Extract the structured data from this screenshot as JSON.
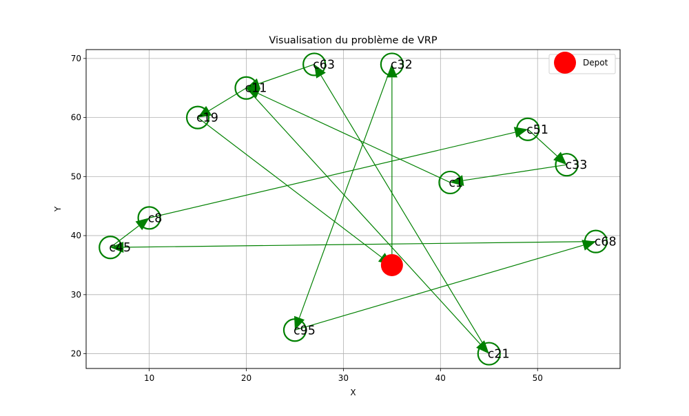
{
  "chart_data": {
    "type": "scatter",
    "title": "Visualisation du problème de VRP",
    "xlabel": "X",
    "ylabel": "Y",
    "xlim": [
      3.5,
      58.5
    ],
    "ylim": [
      17.5,
      71.5
    ],
    "xticks": [
      10,
      20,
      30,
      40,
      50
    ],
    "yticks": [
      20,
      30,
      40,
      50,
      60,
      70
    ],
    "grid": true,
    "legend": {
      "position": "top-right",
      "entries": [
        "Depot"
      ]
    },
    "depot": {
      "label": "Depot",
      "x": 35,
      "y": 35,
      "color": "#ff0000"
    },
    "customers": [
      {
        "id": "c63",
        "x": 27,
        "y": 69
      },
      {
        "id": "c32",
        "x": 35,
        "y": 69
      },
      {
        "id": "c11",
        "x": 20,
        "y": 65
      },
      {
        "id": "c19",
        "x": 15,
        "y": 60
      },
      {
        "id": "c51",
        "x": 49,
        "y": 58
      },
      {
        "id": "c33",
        "x": 53,
        "y": 52
      },
      {
        "id": "c1",
        "x": 41,
        "y": 49
      },
      {
        "id": "c8",
        "x": 10,
        "y": 43
      },
      {
        "id": "c45",
        "x": 6,
        "y": 38
      },
      {
        "id": "c68",
        "x": 56,
        "y": 39
      },
      {
        "id": "c95",
        "x": 25,
        "y": 24
      },
      {
        "id": "c21",
        "x": 45,
        "y": 20
      }
    ],
    "route": [
      "Depot",
      "c32",
      "c95",
      "c68",
      "c45",
      "c8",
      "c51",
      "c33",
      "c1",
      "c11",
      "c21",
      "c63",
      "c11",
      "c19",
      "Depot"
    ],
    "route_color": "#008000"
  }
}
